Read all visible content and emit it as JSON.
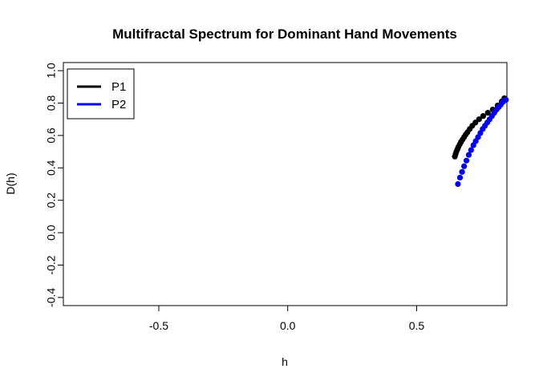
{
  "chart_data": {
    "type": "scatter",
    "title": "Multifractal Spectrum for Dominant Hand Movements",
    "xlabel": "h",
    "ylabel": "D(h)",
    "xlim": [
      -0.87,
      0.85
    ],
    "ylim": [
      -0.45,
      1.05
    ],
    "x_ticks": [
      -0.5,
      0.0,
      0.5
    ],
    "x_tick_labels": [
      "-0.5",
      "0.0",
      "0.5"
    ],
    "y_ticks": [
      -0.4,
      -0.2,
      0.0,
      0.2,
      0.4,
      0.6,
      0.8,
      1.0
    ],
    "y_tick_labels": [
      "-0.4",
      "-0.2",
      "0.0",
      "0.2",
      "0.4",
      "0.6",
      "0.8",
      "1.0"
    ],
    "grid": false,
    "legend_position": "top-left",
    "series": [
      {
        "name": "P1",
        "color": "#000000",
        "marker": "circle",
        "points": [
          [
            0.648,
            0.47
          ],
          [
            0.651,
            0.485
          ],
          [
            0.654,
            0.5
          ],
          [
            0.658,
            0.515
          ],
          [
            0.662,
            0.53
          ],
          [
            0.667,
            0.545
          ],
          [
            0.672,
            0.56
          ],
          [
            0.678,
            0.575
          ],
          [
            0.684,
            0.59
          ],
          [
            0.69,
            0.605
          ],
          [
            0.697,
            0.62
          ],
          [
            0.706,
            0.64
          ],
          [
            0.716,
            0.66
          ],
          [
            0.728,
            0.68
          ],
          [
            0.742,
            0.7
          ],
          [
            0.758,
            0.72
          ],
          [
            0.776,
            0.74
          ],
          [
            0.795,
            0.76
          ],
          [
            0.814,
            0.785
          ],
          [
            0.83,
            0.81
          ],
          [
            0.84,
            0.83
          ]
        ]
      },
      {
        "name": "P2",
        "color": "#0000ff",
        "marker": "circle",
        "points": [
          [
            0.66,
            0.3
          ],
          [
            0.668,
            0.34
          ],
          [
            0.676,
            0.375
          ],
          [
            0.684,
            0.41
          ],
          [
            0.693,
            0.445
          ],
          [
            0.702,
            0.48
          ],
          [
            0.711,
            0.51
          ],
          [
            0.72,
            0.54
          ],
          [
            0.729,
            0.565
          ],
          [
            0.738,
            0.59
          ],
          [
            0.747,
            0.615
          ],
          [
            0.756,
            0.64
          ],
          [
            0.765,
            0.66
          ],
          [
            0.774,
            0.68
          ],
          [
            0.783,
            0.7
          ],
          [
            0.792,
            0.72
          ],
          [
            0.801,
            0.74
          ],
          [
            0.81,
            0.76
          ],
          [
            0.818,
            0.775
          ],
          [
            0.826,
            0.79
          ],
          [
            0.833,
            0.805
          ],
          [
            0.84,
            0.815
          ],
          [
            0.846,
            0.82
          ]
        ]
      }
    ]
  }
}
